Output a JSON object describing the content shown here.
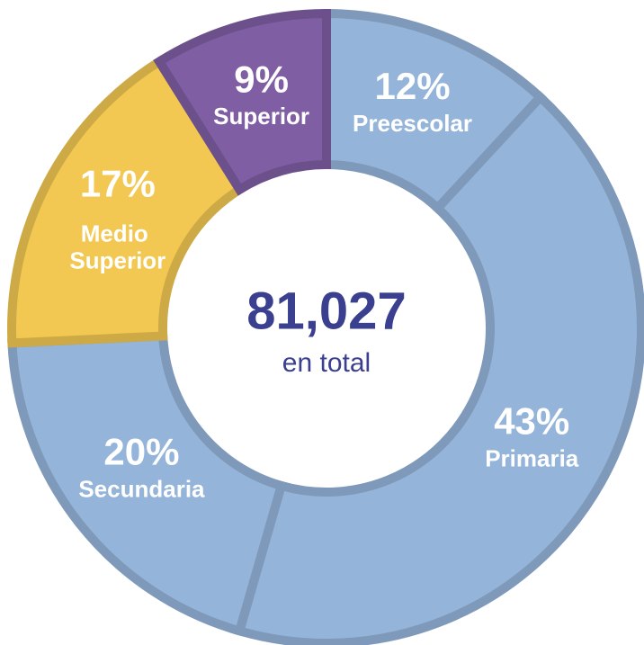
{
  "chart_data": {
    "type": "donut",
    "categories": [
      "Preescolar",
      "Primaria",
      "Secundaria",
      "Medio Superior",
      "Superior"
    ],
    "values": [
      12,
      43,
      20,
      17,
      9
    ],
    "value_labels": [
      "12%",
      "43%",
      "20%",
      "17%",
      "9%"
    ],
    "colors": [
      "#94b4da",
      "#94b4da",
      "#94b4da",
      "#f2c852",
      "#7f5ea3"
    ],
    "total": {
      "value": 81027,
      "label": "81,027"
    },
    "total_caption": "en total"
  }
}
